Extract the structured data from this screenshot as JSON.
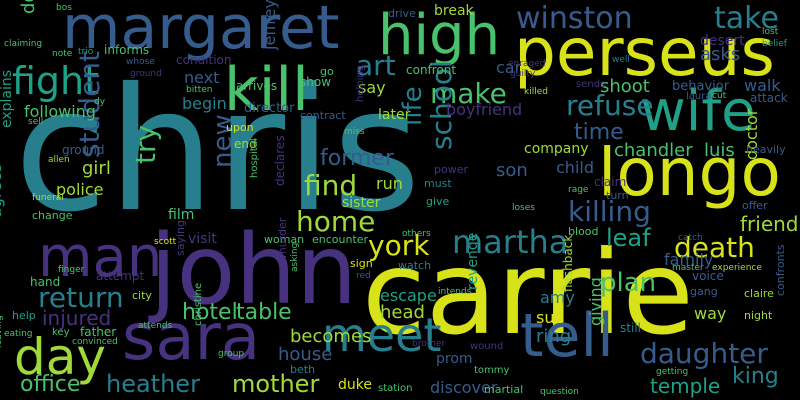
{
  "palette": {
    "background": "#000000",
    "yellow": "#d8e219",
    "lime": "#a0da39",
    "green": "#4ac16d",
    "seafoam": "#1fa187",
    "teal": "#277f8e",
    "steel": "#365c8d",
    "indigo": "#46327e",
    "purple": "#440154"
  },
  "words": [
    {
      "text": "chris",
      "color": "#277f8e"
    },
    {
      "text": "carrie",
      "color": "#d8e219"
    },
    {
      "text": "john",
      "color": "#46327e"
    },
    {
      "text": "perseus",
      "color": "#d8e219"
    },
    {
      "text": "margaret",
      "color": "#365c8d"
    },
    {
      "text": "longo",
      "color": "#d8e219"
    },
    {
      "text": "high",
      "color": "#4ac16d"
    },
    {
      "text": "sara",
      "color": "#46327e"
    },
    {
      "text": "kill",
      "color": "#4ac16d"
    },
    {
      "text": "wife",
      "color": "#1fa187"
    },
    {
      "text": "man",
      "color": "#46327e"
    },
    {
      "text": "meet",
      "color": "#277f8e"
    },
    {
      "text": "tell",
      "color": "#365c8d"
    },
    {
      "text": "day",
      "color": "#a0da39"
    },
    {
      "text": "fight",
      "color": "#1fa187"
    },
    {
      "text": "winston",
      "color": "#365c8d"
    },
    {
      "text": "take",
      "color": "#277f8e"
    },
    {
      "text": "martha",
      "color": "#277f8e"
    },
    {
      "text": "daughter",
      "color": "#365c8d"
    },
    {
      "text": "death",
      "color": "#d8e219"
    },
    {
      "text": "york",
      "color": "#d8e219"
    },
    {
      "text": "refuse",
      "color": "#277f8e"
    },
    {
      "text": "make",
      "color": "#4ac16d"
    },
    {
      "text": "school",
      "color": "#277f8e"
    },
    {
      "text": "home",
      "color": "#a0da39"
    },
    {
      "text": "find",
      "color": "#a0da39"
    },
    {
      "text": "killing",
      "color": "#365c8d"
    },
    {
      "text": "student",
      "color": "#365c8d"
    },
    {
      "text": "return",
      "color": "#277f8e"
    },
    {
      "text": "heather",
      "color": "#277f8e"
    },
    {
      "text": "mother",
      "color": "#a0da39"
    },
    {
      "text": "hotel",
      "color": "#4ac16d"
    },
    {
      "text": "table",
      "color": "#4ac16d"
    },
    {
      "text": "office",
      "color": "#4ac16d"
    },
    {
      "text": "king",
      "color": "#277f8e"
    },
    {
      "text": "temple",
      "color": "#1fa187"
    },
    {
      "text": "leaf",
      "color": "#1fa187"
    },
    {
      "text": "friend",
      "color": "#a0da39"
    },
    {
      "text": "try",
      "color": "#4ac16d"
    },
    {
      "text": "new",
      "color": "#365c8d"
    },
    {
      "text": "life",
      "color": "#277f8e"
    },
    {
      "text": "art",
      "color": "#277f8e"
    },
    {
      "text": "time",
      "color": "#365c8d"
    },
    {
      "text": "former",
      "color": "#365c8d"
    },
    {
      "text": "sister",
      "color": "#a0da39"
    },
    {
      "text": "injured",
      "color": "#46327e"
    },
    {
      "text": "becomes",
      "color": "#a0da39"
    },
    {
      "text": "house",
      "color": "#365c8d"
    },
    {
      "text": "plan",
      "color": "#4ac16d"
    },
    {
      "text": "family",
      "color": "#365c8d"
    },
    {
      "text": "chandler",
      "color": "#4ac16d"
    },
    {
      "text": "luis",
      "color": "#4ac16d"
    },
    {
      "text": "shoot",
      "color": "#4ac16d"
    },
    {
      "text": "boyfriend",
      "color": "#46327e"
    },
    {
      "text": "asks",
      "color": "#365c8d"
    },
    {
      "text": "behavior",
      "color": "#365c8d"
    },
    {
      "text": "walk",
      "color": "#365c8d"
    },
    {
      "text": "dog",
      "color": "#4ac16d"
    },
    {
      "text": "following",
      "color": "#4ac16d"
    },
    {
      "text": "girl",
      "color": "#a0da39"
    },
    {
      "text": "police",
      "color": "#a0da39"
    },
    {
      "text": "agrees",
      "color": "#1fa187"
    },
    {
      "text": "explains",
      "color": "#1fa187"
    },
    {
      "text": "next",
      "color": "#365c8d"
    },
    {
      "text": "begin",
      "color": "#277f8e"
    },
    {
      "text": "jeffrey",
      "color": "#365c8d"
    },
    {
      "text": "say",
      "color": "#a0da39"
    },
    {
      "text": "later",
      "color": "#a0da39"
    },
    {
      "text": "car",
      "color": "#365c8d"
    },
    {
      "text": "company",
      "color": "#a0da39"
    },
    {
      "text": "child",
      "color": "#365c8d"
    },
    {
      "text": "son",
      "color": "#365c8d"
    },
    {
      "text": "doctor",
      "color": "#a0da39"
    },
    {
      "text": "run",
      "color": "#a0da39"
    },
    {
      "text": "film",
      "color": "#4ac16d"
    },
    {
      "text": "visit",
      "color": "#46327e"
    },
    {
      "text": "hand",
      "color": "#4ac16d"
    },
    {
      "text": "attempt",
      "color": "#46327e"
    },
    {
      "text": "sue",
      "color": "#d8e219"
    },
    {
      "text": "ring",
      "color": "#277f8e"
    },
    {
      "text": "amy",
      "color": "#277f8e"
    },
    {
      "text": "head",
      "color": "#a0da39"
    },
    {
      "text": "escape",
      "color": "#1fa187"
    },
    {
      "text": "prom",
      "color": "#365c8d"
    },
    {
      "text": "way",
      "color": "#a0da39"
    },
    {
      "text": "giving",
      "color": "#4ac16d"
    },
    {
      "text": "discover",
      "color": "#365c8d"
    },
    {
      "text": "duke",
      "color": "#d8e219"
    },
    {
      "text": "station",
      "color": "#4ac16d"
    },
    {
      "text": "revenge",
      "color": "#1fa187"
    },
    {
      "text": "break",
      "color": "#a0da39"
    },
    {
      "text": "desert",
      "color": "#46327e"
    },
    {
      "text": "drive",
      "color": "#365c8d"
    },
    {
      "text": "end",
      "color": "#a0da39"
    },
    {
      "text": "upon",
      "color": "#d8e219"
    },
    {
      "text": "director",
      "color": "#365c8d"
    },
    {
      "text": "contract",
      "color": "#365c8d"
    },
    {
      "text": "condition",
      "color": "#46327e"
    },
    {
      "text": "informs",
      "color": "#4ac16d"
    },
    {
      "text": "show",
      "color": "#4ac16d"
    },
    {
      "text": "arrives",
      "color": "#4ac16d"
    },
    {
      "text": "go",
      "color": "#4ac16d"
    },
    {
      "text": "confront",
      "color": "#4ac16d"
    },
    {
      "text": "sends",
      "color": "#46327e"
    },
    {
      "text": "attack",
      "color": "#365c8d"
    },
    {
      "text": "laura",
      "color": "#365c8d"
    },
    {
      "text": "cut",
      "color": "#4ac16d"
    },
    {
      "text": "heavily",
      "color": "#365c8d"
    },
    {
      "text": "offer",
      "color": "#365c8d"
    },
    {
      "text": "confronts",
      "color": "#365c8d"
    },
    {
      "text": "night",
      "color": "#a0da39"
    },
    {
      "text": "claire",
      "color": "#a0da39"
    },
    {
      "text": "voice",
      "color": "#365c8d"
    },
    {
      "text": "still",
      "color": "#277f8e"
    },
    {
      "text": "gang",
      "color": "#365c8d"
    },
    {
      "text": "flashback",
      "color": "#a0da39"
    },
    {
      "text": "blood",
      "color": "#4ac16d"
    },
    {
      "text": "claim",
      "color": "#46327e"
    },
    {
      "text": "turn",
      "color": "#365c8d"
    },
    {
      "text": "rage",
      "color": "#4ac16d"
    },
    {
      "text": "loses",
      "color": "#4ac16d"
    },
    {
      "text": "watch",
      "color": "#277f8e"
    },
    {
      "text": "must",
      "color": "#277f8e"
    },
    {
      "text": "give",
      "color": "#1fa187"
    },
    {
      "text": "power",
      "color": "#46327e"
    },
    {
      "text": "woman",
      "color": "#4ac16d"
    },
    {
      "text": "encounter",
      "color": "#4ac16d"
    },
    {
      "text": "sign",
      "color": "#d8e219"
    },
    {
      "text": "declares",
      "color": "#46327e"
    },
    {
      "text": "hospital",
      "color": "#4ac16d"
    },
    {
      "text": "murder",
      "color": "#46327e"
    },
    {
      "text": "saying",
      "color": "#46327e"
    },
    {
      "text": "beth",
      "color": "#277f8e"
    },
    {
      "text": "christine",
      "color": "#4ac16d"
    },
    {
      "text": "tommy",
      "color": "#4ac16d"
    },
    {
      "text": "martial",
      "color": "#4ac16d"
    },
    {
      "text": "question",
      "color": "#4ac16d"
    },
    {
      "text": "wound",
      "color": "#46327e"
    },
    {
      "text": "brother",
      "color": "#46327e"
    },
    {
      "text": "scott",
      "color": "#d8e219"
    },
    {
      "text": "city",
      "color": "#a0da39"
    },
    {
      "text": "father",
      "color": "#4ac16d"
    },
    {
      "text": "help",
      "color": "#1fa187"
    },
    {
      "text": "key",
      "color": "#4ac16d"
    },
    {
      "text": "attends",
      "color": "#4ac16d"
    },
    {
      "text": "convinced",
      "color": "#4ac16d"
    },
    {
      "text": "allen",
      "color": "#a0da39"
    },
    {
      "text": "ground",
      "color": "#365c8d"
    },
    {
      "text": "funeral",
      "color": "#a0da39"
    },
    {
      "text": "change",
      "color": "#4ac16d"
    },
    {
      "text": "note",
      "color": "#4ac16d"
    },
    {
      "text": "trio",
      "color": "#1fa187"
    },
    {
      "text": "bos",
      "color": "#4ac16d"
    },
    {
      "text": "lost",
      "color": "#4ac16d"
    },
    {
      "text": "belief",
      "color": "#1fa187"
    },
    {
      "text": "well",
      "color": "#277f8e"
    },
    {
      "text": "enraged",
      "color": "#46327e"
    },
    {
      "text": "guilty",
      "color": "#46327e"
    },
    {
      "text": "killed",
      "color": "#a0da39"
    },
    {
      "text": "bitten",
      "color": "#4ac16d"
    },
    {
      "text": "helping",
      "color": "#46327e"
    },
    {
      "text": "miss",
      "color": "#4ac16d"
    },
    {
      "text": "others",
      "color": "#4ac16d"
    },
    {
      "text": "catch",
      "color": "#365c8d"
    },
    {
      "text": "master",
      "color": "#4ac16d"
    },
    {
      "text": "experience",
      "color": "#a0da39"
    },
    {
      "text": "finger",
      "color": "#4ac16d"
    },
    {
      "text": "red",
      "color": "#365c8d"
    },
    {
      "text": "asking",
      "color": "#4ac16d"
    },
    {
      "text": "intends",
      "color": "#4ac16d"
    },
    {
      "text": "getting",
      "color": "#4ac16d"
    },
    {
      "text": "leaving",
      "color": "#4ac16d"
    },
    {
      "text": "eating",
      "color": "#4ac16d"
    },
    {
      "text": "claiming",
      "color": "#4ac16d"
    },
    {
      "text": "sell",
      "color": "#4ac16d"
    },
    {
      "text": "group",
      "color": "#4ac16d"
    },
    {
      "text": "dy",
      "color": "#4ac16d"
    },
    {
      "text": "ground",
      "color": "#46327e"
    },
    {
      "text": "whose",
      "color": "#365c8d"
    }
  ]
}
